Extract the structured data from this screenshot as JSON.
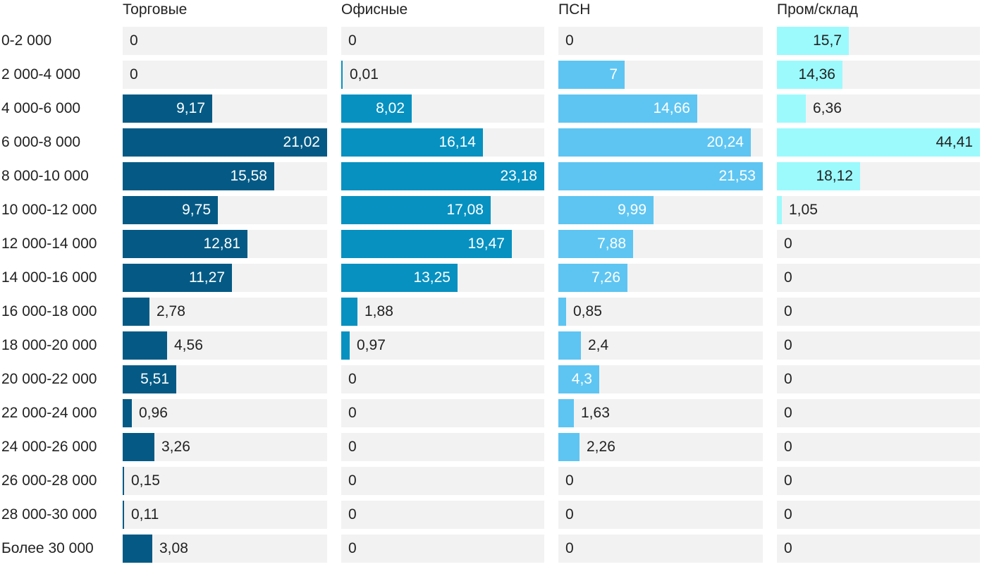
{
  "chart_data": {
    "type": "bar",
    "orientation": "horizontal",
    "layout": "small-multiples",
    "categories": [
      "0-2 000",
      "2 000-4 000",
      "4 000-6 000",
      "6 000-8 000",
      "8 000-10 000",
      "10 000-12 000",
      "12 000-14 000",
      "14 000-16 000",
      "16 000-18 000",
      "18 000-20 000",
      "20 000-22 000",
      "22 000-24 000",
      "24 000-26 000",
      "26 000-28 000",
      "28 000-30 000",
      "Более 30 000"
    ],
    "series": [
      {
        "name": "Торговые",
        "color": "#045a85",
        "labels": [
          "0",
          "0",
          "9,17",
          "21,02",
          "15,58",
          "9,75",
          "12,81",
          "11,27",
          "2,78",
          "4,56",
          "5,51",
          "0,96",
          "3,26",
          "0,15",
          "0,11",
          "3,08"
        ],
        "values": [
          0,
          0,
          9.17,
          21.02,
          15.58,
          9.75,
          12.81,
          11.27,
          2.78,
          4.56,
          5.51,
          0.96,
          3.26,
          0.15,
          0.11,
          3.08
        ]
      },
      {
        "name": "Офисные",
        "color": "#0691c1",
        "labels": [
          "0",
          "0,01",
          "8,02",
          "16,14",
          "23,18",
          "17,08",
          "19,47",
          "13,25",
          "1,88",
          "0,97",
          "0",
          "0",
          "0",
          "0",
          "0",
          "0"
        ],
        "values": [
          0,
          0.01,
          8.02,
          16.14,
          23.18,
          17.08,
          19.47,
          13.25,
          1.88,
          0.97,
          0,
          0,
          0,
          0,
          0,
          0
        ]
      },
      {
        "name": "ПСН",
        "color": "#5ec5f2",
        "labels": [
          "0",
          "7",
          "14,66",
          "20,24",
          "21,53",
          "9,99",
          "7,88",
          "7,26",
          "0,85",
          "2,4",
          "4,3",
          "1,63",
          "2,26",
          "0",
          "0",
          "0"
        ],
        "values": [
          0,
          7,
          14.66,
          20.24,
          21.53,
          9.99,
          7.88,
          7.26,
          0.85,
          2.4,
          4.3,
          1.63,
          2.26,
          0,
          0,
          0
        ]
      },
      {
        "name": "Пром/склад",
        "color": "#9cfafd",
        "labels": [
          "15,7",
          "14,36",
          "6,36",
          "44,41",
          "18,12",
          "1,05",
          "0",
          "0",
          "0",
          "0",
          "0",
          "0",
          "0",
          "0",
          "0",
          "0"
        ],
        "values": [
          15.7,
          14.36,
          6.36,
          44.41,
          18.12,
          1.05,
          0,
          0,
          0,
          0,
          0,
          0,
          0,
          0,
          0,
          0
        ]
      }
    ],
    "title": "",
    "xlabel": "",
    "ylabel": "",
    "xlim_per_series": [
      [
        0,
        21.02
      ],
      [
        0,
        23.18
      ],
      [
        0,
        21.53
      ],
      [
        0,
        44.41
      ]
    ],
    "grid": false,
    "legend": "none"
  }
}
